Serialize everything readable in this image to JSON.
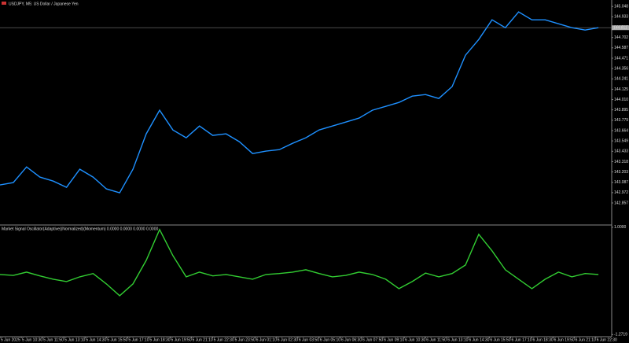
{
  "chart_data": [
    {
      "type": "line",
      "title": "USDJPY, M5: US Dollar / Japanese Yen",
      "x": [
        0,
        1,
        2,
        3,
        4,
        5,
        6,
        7,
        8,
        9,
        10,
        11,
        12,
        13,
        14,
        15,
        16,
        17,
        18,
        19,
        20,
        21,
        22,
        23,
        24,
        25,
        26,
        27,
        28,
        29,
        30,
        31,
        32,
        33,
        34,
        35,
        36,
        37,
        38,
        39,
        40,
        41,
        42,
        43,
        44,
        45
      ],
      "series": [
        {
          "color": "#1e90ff",
          "values": [
            143.058,
            143.084,
            143.259,
            143.145,
            143.101,
            143.031,
            143.233,
            143.145,
            143.014,
            142.97,
            143.233,
            143.628,
            143.891,
            143.671,
            143.584,
            143.715,
            143.61,
            143.628,
            143.54,
            143.408,
            143.435,
            143.452,
            143.522,
            143.584,
            143.671,
            143.715,
            143.759,
            143.803,
            143.891,
            143.934,
            143.978,
            144.048,
            144.066,
            144.022,
            144.154,
            144.504,
            144.68,
            144.899,
            144.811,
            144.987,
            144.899,
            144.899,
            144.855,
            144.811,
            144.785,
            144.811
          ]
        }
      ],
      "current_price": 144.811,
      "xlim": [
        0,
        46
      ],
      "ylim": [
        142.62,
        145.12
      ],
      "yticks": [
        145.048,
        144.933,
        144.817,
        144.702,
        144.587,
        144.471,
        144.356,
        144.241,
        144.125,
        {
          "value": 144.01,
          "label": "144.010"
        },
        143.895,
        143.779,
        143.664,
        143.549,
        143.433,
        143.318,
        143.203,
        143.087,
        142.972,
        142.857
      ]
    },
    {
      "type": "line",
      "title": "Market Signal Oscillator(Adaptive)(Normalized)(Momentum) 0.0000 0.0000 0.0000 0.0000",
      "x": [
        0,
        1,
        2,
        3,
        4,
        5,
        6,
        7,
        8,
        9,
        10,
        11,
        12,
        13,
        14,
        15,
        16,
        17,
        18,
        19,
        20,
        21,
        22,
        23,
        24,
        25,
        26,
        27,
        28,
        29,
        30,
        31,
        32,
        33,
        34,
        35,
        36,
        37,
        38,
        39,
        40,
        41,
        42,
        43,
        44,
        45
      ],
      "series": [
        {
          "color": "#32cd32",
          "values": [
            0,
            -0.02,
            0.05,
            -0.03,
            -0.1,
            -0.15,
            -0.05,
            0.02,
            -0.2,
            -0.45,
            -0.2,
            0.3,
            0.95,
            0.4,
            -0.05,
            0.05,
            -0.03,
            0,
            -0.05,
            -0.1,
            0,
            0.02,
            0.05,
            0.1,
            0.02,
            -0.05,
            -0.02,
            0.05,
            0,
            -0.1,
            -0.3,
            -0.15,
            0.03,
            -0.05,
            0.02,
            0.2,
            0.85,
            0.5,
            0.1,
            -0.1,
            -0.3,
            -0.1,
            0.05,
            -0.05,
            0.02,
            0
          ]
        }
      ],
      "xlim": [
        0,
        46
      ],
      "ylim": [
        -1.3,
        1.03
      ],
      "yticks": [
        {
          "value": 1,
          "label": "1.0000"
        },
        {
          "value": -1.2719,
          "label": "-1.2719"
        }
      ],
      "xticks": [
        {
          "value": 0,
          "label": "5 Jun 2025"
        },
        {
          "value": 1.6,
          "label": "5 Jun 10:30"
        },
        {
          "value": 3.2,
          "label": "5 Jun 11:50"
        },
        {
          "value": 4.8,
          "label": "5 Jun 13:10"
        },
        {
          "value": 6.4,
          "label": "5 Jun 14:30"
        },
        {
          "value": 8,
          "label": "5 Jun 15:50"
        },
        {
          "value": 9.6,
          "label": "5 Jun 17:10"
        },
        {
          "value": 11.2,
          "label": "5 Jun 18:30"
        },
        {
          "value": 12.8,
          "label": "5 Jun 19:50"
        },
        {
          "value": 14.4,
          "label": "5 Jun 21:10"
        },
        {
          "value": 16,
          "label": "5 Jun 22:30"
        },
        {
          "value": 17.6,
          "label": "5 Jun 23:50"
        },
        {
          "value": 19.2,
          "label": "6 Jun 01:10"
        },
        {
          "value": 20.8,
          "label": "6 Jun 02:30"
        },
        {
          "value": 22.4,
          "label": "6 Jun 03:50"
        },
        {
          "value": 24,
          "label": "6 Jun 05:10"
        },
        {
          "value": 25.6,
          "label": "6 Jun 06:30"
        },
        {
          "value": 27.2,
          "label": "6 Jun 07:50"
        },
        {
          "value": 28.8,
          "label": "6 Jun 09:10"
        },
        {
          "value": 30.4,
          "label": "6 Jun 10:30"
        },
        {
          "value": 32,
          "label": "6 Jun 11:50"
        },
        {
          "value": 33.6,
          "label": "6 Jun 13:10"
        },
        {
          "value": 35.2,
          "label": "6 Jun 14:30"
        },
        {
          "value": 36.8,
          "label": "6 Jun 15:50"
        },
        {
          "value": 38.4,
          "label": "6 Jun 17:10"
        },
        {
          "value": 40,
          "label": "6 Jun 18:30"
        },
        {
          "value": 41.6,
          "label": "6 Jun 19:50"
        },
        {
          "value": 43.2,
          "label": "6 Jun 21:10"
        },
        {
          "value": 44.8,
          "label": "6 Jun 22:30"
        }
      ]
    }
  ]
}
